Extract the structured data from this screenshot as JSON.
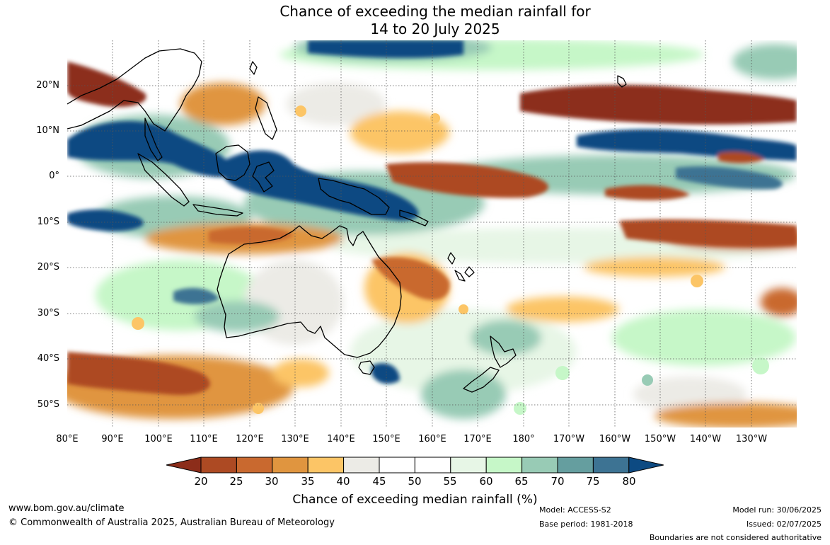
{
  "title": {
    "line1": "Chance of exceeding the median rainfall for",
    "line2": "14 to 20 July 2025"
  },
  "axes": {
    "lat_labels": [
      "20°N",
      "10°N",
      "0°",
      "10°S",
      "20°S",
      "30°S",
      "40°S",
      "50°S"
    ],
    "lon_labels": [
      "80°E",
      "90°E",
      "100°E",
      "110°E",
      "120°E",
      "130°E",
      "140°E",
      "150°E",
      "160°E",
      "170°E",
      "180°",
      "170°W",
      "160°W",
      "150°W",
      "140°W",
      "130°W"
    ],
    "lon_range": [
      80,
      240
    ],
    "lat_range": [
      -55,
      30
    ]
  },
  "colorbar": {
    "ticks": [
      "20",
      "25",
      "30",
      "35",
      "40",
      "45",
      "50",
      "55",
      "60",
      "65",
      "70",
      "75",
      "80"
    ],
    "colors": [
      "#8c2d1a",
      "#ad4a23",
      "#c9692f",
      "#e0953f",
      "#fcc566",
      "#ecebe6",
      "#ffffff",
      "#ffffff",
      "#e7f6e6",
      "#c6f7c8",
      "#98cbb5",
      "#659e9f",
      "#3d7393",
      "#0d4a82"
    ],
    "title": "Chance of exceeding median rainfall (%)"
  },
  "footer": {
    "website": "www.bom.gov.au/climate",
    "copyright": "© Commonwealth of Australia 2025, Australian Bureau of Meteorology",
    "model": "Model: ACCESS-S2",
    "base_period": "Base period: 1981-2018",
    "model_run": "Model run: 30/06/2025",
    "issued": "Issued: 02/07/2025",
    "boundaries": "Boundaries are not considered authoritative"
  }
}
